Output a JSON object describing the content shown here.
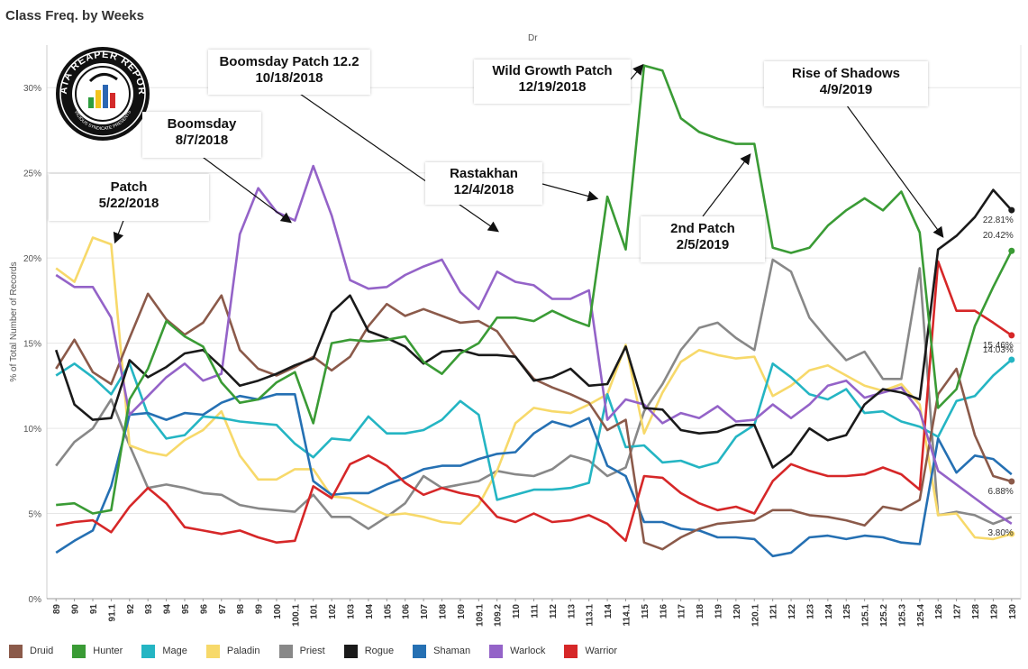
{
  "title": "Class Freq. by Weeks",
  "column_header": "Dr",
  "logo": {
    "text": "DATA REAPER REPORT",
    "subtext": "VICIOUS SYNDICATE PRESENTS"
  },
  "annotations": [
    {
      "title": "Patch",
      "date": "5/22/2018"
    },
    {
      "title": "Boomsday",
      "date": "8/7/2018"
    },
    {
      "title": "Boomsday Patch 12.2",
      "date": "10/18/2018"
    },
    {
      "title": "Rastakhan",
      "date": "12/4/2018"
    },
    {
      "title": "Wild Growth Patch",
      "date": "12/19/2018"
    },
    {
      "title": "2nd Patch",
      "date": "2/5/2019"
    },
    {
      "title": "Rise of Shadows",
      "date": "4/9/2019"
    }
  ],
  "chart_data": {
    "type": "line",
    "ylabel": "% of Total Number of Records",
    "xlabel": "",
    "ylim": [
      0,
      32.5
    ],
    "yticks": [
      "0%",
      "5%",
      "10%",
      "15%",
      "20%",
      "25%",
      "30%"
    ],
    "grid": "horizontal",
    "legend_position": "bottom",
    "categories": [
      "89",
      "90",
      "91",
      "91.1",
      "92",
      "93",
      "94",
      "95",
      "96",
      "97",
      "98",
      "99",
      "100",
      "100.1",
      "101",
      "102",
      "103",
      "104",
      "105",
      "106",
      "107",
      "108",
      "109",
      "109.1",
      "109.2",
      "110",
      "111",
      "112",
      "113",
      "113.1",
      "114",
      "114.1",
      "115",
      "116",
      "117",
      "118",
      "119",
      "120",
      "120.1",
      "121",
      "122",
      "123",
      "124",
      "125",
      "125.1",
      "125.2",
      "125.3",
      "125.4",
      "126",
      "127",
      "128",
      "129",
      "130"
    ],
    "end_labels": [
      {
        "series": "Rogue",
        "text": "22.81%"
      },
      {
        "series": "Hunter",
        "text": "20.42%"
      },
      {
        "series": "Warrior",
        "text": "15.46%"
      },
      {
        "series": "Mage",
        "text": "14.03%"
      },
      {
        "series": "Druid",
        "text": "6.88%"
      },
      {
        "series": "Paladin",
        "text": "3.80%"
      }
    ],
    "series": [
      {
        "name": "Druid",
        "color": "#8b5a4a",
        "values": [
          13.5,
          15.2,
          13.3,
          12.6,
          15.3,
          17.9,
          16.4,
          15.5,
          16.2,
          17.8,
          14.6,
          13.5,
          13.1,
          13.6,
          14.2,
          13.4,
          14.2,
          16.0,
          17.3,
          16.6,
          17.0,
          16.6,
          16.2,
          16.3,
          15.7,
          14.2,
          12.9,
          12.4,
          12.0,
          11.5,
          9.9,
          10.5,
          3.3,
          2.9,
          3.6,
          4.1,
          4.4,
          4.5,
          4.6,
          5.2,
          5.2,
          4.9,
          4.8,
          4.6,
          4.3,
          5.4,
          5.2,
          5.8,
          12.0,
          13.5,
          9.6,
          7.2,
          6.88
        ]
      },
      {
        "name": "Hunter",
        "color": "#3a9b35",
        "values": [
          5.5,
          5.6,
          5.0,
          5.2,
          11.7,
          13.5,
          16.3,
          15.4,
          14.8,
          12.7,
          11.5,
          11.7,
          12.7,
          13.3,
          10.3,
          15.0,
          15.2,
          15.1,
          15.2,
          15.4,
          13.9,
          13.2,
          14.4,
          15.0,
          16.5,
          16.5,
          16.3,
          16.9,
          16.4,
          16.0,
          23.6,
          20.5,
          31.3,
          31.0,
          28.2,
          27.4,
          27.0,
          26.7,
          26.7,
          20.6,
          20.3,
          20.6,
          21.9,
          22.8,
          23.5,
          22.8,
          23.9,
          21.5,
          11.2,
          12.3,
          16.0,
          18.3,
          20.42
        ]
      },
      {
        "name": "Mage",
        "color": "#24b5c3",
        "values": [
          13.1,
          13.8,
          13.0,
          12.0,
          13.8,
          10.8,
          9.4,
          9.6,
          10.7,
          10.6,
          10.4,
          10.3,
          10.2,
          9.1,
          8.3,
          9.4,
          9.3,
          10.7,
          9.7,
          9.7,
          9.9,
          10.5,
          11.6,
          10.8,
          5.8,
          6.1,
          6.4,
          6.4,
          6.5,
          6.8,
          12.0,
          8.9,
          9.0,
          8.0,
          8.1,
          7.7,
          8.0,
          9.5,
          10.2,
          13.8,
          13.0,
          12.0,
          11.7,
          12.3,
          10.9,
          11.0,
          10.4,
          10.1,
          9.5,
          11.6,
          11.9,
          13.1,
          14.03
        ]
      },
      {
        "name": "Paladin",
        "color": "#f7d96a",
        "values": [
          19.4,
          18.6,
          21.2,
          20.8,
          9.0,
          8.6,
          8.4,
          9.3,
          9.9,
          11.0,
          8.4,
          7.0,
          7.0,
          7.6,
          7.6,
          6.0,
          5.9,
          5.4,
          4.9,
          5.0,
          4.8,
          4.5,
          4.4,
          5.5,
          7.5,
          10.3,
          11.2,
          11.0,
          10.9,
          11.4,
          12.0,
          14.9,
          9.7,
          12.1,
          13.9,
          14.6,
          14.3,
          14.1,
          14.2,
          11.9,
          12.5,
          13.4,
          13.7,
          13.1,
          12.5,
          12.2,
          12.6,
          11.4,
          4.9,
          5.0,
          3.6,
          3.5,
          3.8
        ]
      },
      {
        "name": "Priest",
        "color": "#888888",
        "values": [
          7.8,
          9.2,
          10.0,
          11.7,
          9.0,
          6.5,
          6.7,
          6.5,
          6.2,
          6.1,
          5.5,
          5.3,
          5.2,
          5.1,
          6.1,
          4.8,
          4.8,
          4.1,
          4.8,
          5.6,
          7.2,
          6.5,
          6.7,
          6.9,
          7.5,
          7.3,
          7.2,
          7.6,
          8.4,
          8.1,
          7.2,
          7.7,
          11.0,
          12.6,
          14.6,
          15.9,
          16.2,
          15.3,
          14.6,
          19.9,
          19.2,
          16.5,
          15.2,
          14.0,
          14.5,
          12.9,
          12.9,
          19.4,
          4.9,
          5.1,
          4.9,
          4.4,
          4.8
        ]
      },
      {
        "name": "Rogue",
        "color": "#1a1a1a",
        "values": [
          14.6,
          11.4,
          10.5,
          10.6,
          14.0,
          13.0,
          13.6,
          14.4,
          14.6,
          13.6,
          12.5,
          12.8,
          13.2,
          13.7,
          14.1,
          16.8,
          17.8,
          15.7,
          15.3,
          14.8,
          13.8,
          14.5,
          14.6,
          14.3,
          14.3,
          14.2,
          12.8,
          13.0,
          13.5,
          12.5,
          12.6,
          14.8,
          11.2,
          11.1,
          9.9,
          9.7,
          9.8,
          10.2,
          10.2,
          7.7,
          8.5,
          10.0,
          9.3,
          9.6,
          11.4,
          12.3,
          12.1,
          11.7,
          20.5,
          21.3,
          22.4,
          24.0,
          22.81
        ]
      },
      {
        "name": "Shaman",
        "color": "#2570b3",
        "values": [
          2.7,
          3.4,
          4.0,
          6.6,
          10.8,
          10.9,
          10.5,
          10.9,
          10.8,
          11.5,
          11.9,
          11.7,
          12.0,
          12.0,
          6.9,
          6.1,
          6.2,
          6.2,
          6.7,
          7.1,
          7.6,
          7.8,
          7.8,
          8.2,
          8.5,
          8.6,
          9.7,
          10.4,
          10.1,
          10.6,
          7.8,
          7.2,
          4.5,
          4.5,
          4.1,
          4.0,
          3.6,
          3.6,
          3.5,
          2.5,
          2.7,
          3.6,
          3.7,
          3.5,
          3.7,
          3.6,
          3.3,
          3.2,
          9.4,
          7.4,
          8.4,
          8.2,
          7.3
        ]
      },
      {
        "name": "Warlock",
        "color": "#9463c8",
        "values": [
          19.0,
          18.3,
          18.3,
          16.5,
          10.8,
          11.9,
          13.0,
          13.8,
          12.8,
          13.2,
          21.4,
          24.1,
          22.7,
          22.2,
          25.4,
          22.5,
          18.7,
          18.2,
          18.3,
          19.0,
          19.5,
          19.9,
          18.0,
          17.0,
          19.2,
          18.6,
          18.4,
          17.6,
          17.6,
          18.1,
          10.5,
          11.7,
          11.4,
          10.3,
          10.9,
          10.6,
          11.3,
          10.4,
          10.5,
          11.4,
          10.6,
          11.4,
          12.5,
          12.8,
          11.8,
          12.1,
          12.4,
          11.0,
          7.5,
          6.7,
          5.9,
          5.1,
          4.4
        ]
      },
      {
        "name": "Warrior",
        "color": "#d62728",
        "values": [
          4.3,
          4.5,
          4.6,
          3.9,
          5.4,
          6.5,
          5.6,
          4.2,
          4.0,
          3.8,
          4.0,
          3.6,
          3.3,
          3.4,
          6.6,
          5.9,
          7.9,
          8.4,
          7.8,
          6.8,
          6.1,
          6.5,
          6.2,
          6.0,
          4.8,
          4.5,
          5.0,
          4.5,
          4.6,
          4.9,
          4.4,
          3.4,
          7.2,
          7.1,
          6.2,
          5.6,
          5.2,
          5.4,
          5.0,
          6.9,
          7.9,
          7.5,
          7.2,
          7.2,
          7.3,
          7.7,
          7.3,
          6.4,
          19.8,
          16.9,
          16.9,
          16.2,
          15.46
        ]
      }
    ]
  }
}
